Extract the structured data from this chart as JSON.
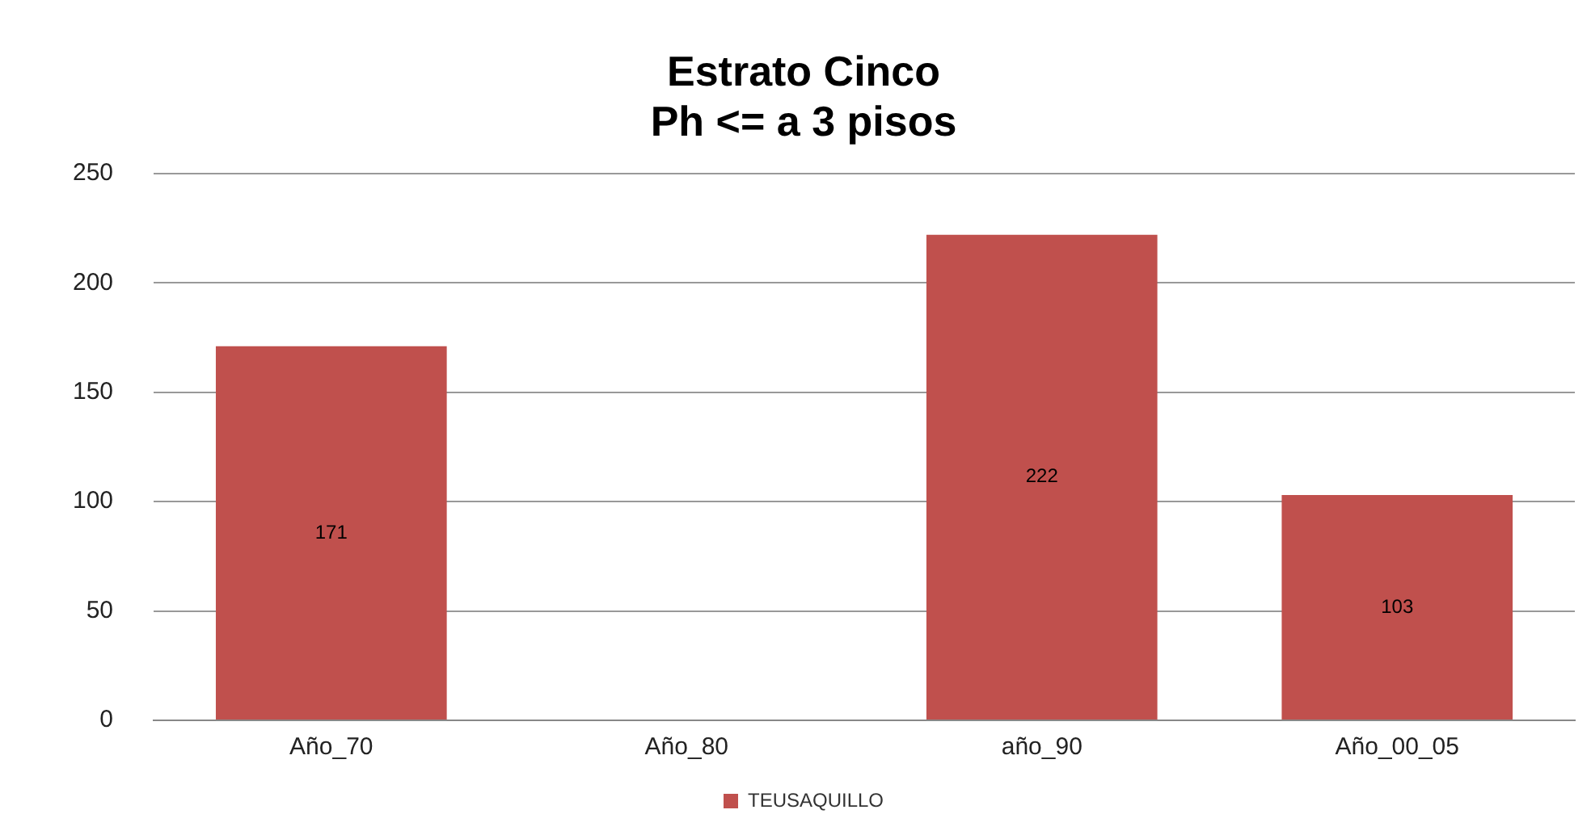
{
  "chart_data": {
    "type": "bar",
    "title": "Estrato Cinco\nPh <= a 3 pisos",
    "categories": [
      "Año_70",
      "Año_80",
      "año_90",
      "Año_00_05"
    ],
    "series": [
      {
        "name": "TEUSAQUILLO",
        "color": "#c0504d",
        "values": [
          171,
          null,
          222,
          103
        ]
      }
    ],
    "ylim": [
      0,
      250
    ],
    "yticks": [
      0,
      50,
      100,
      150,
      200,
      250
    ],
    "grid": "y",
    "legend": "bottom",
    "data_labels": true
  }
}
